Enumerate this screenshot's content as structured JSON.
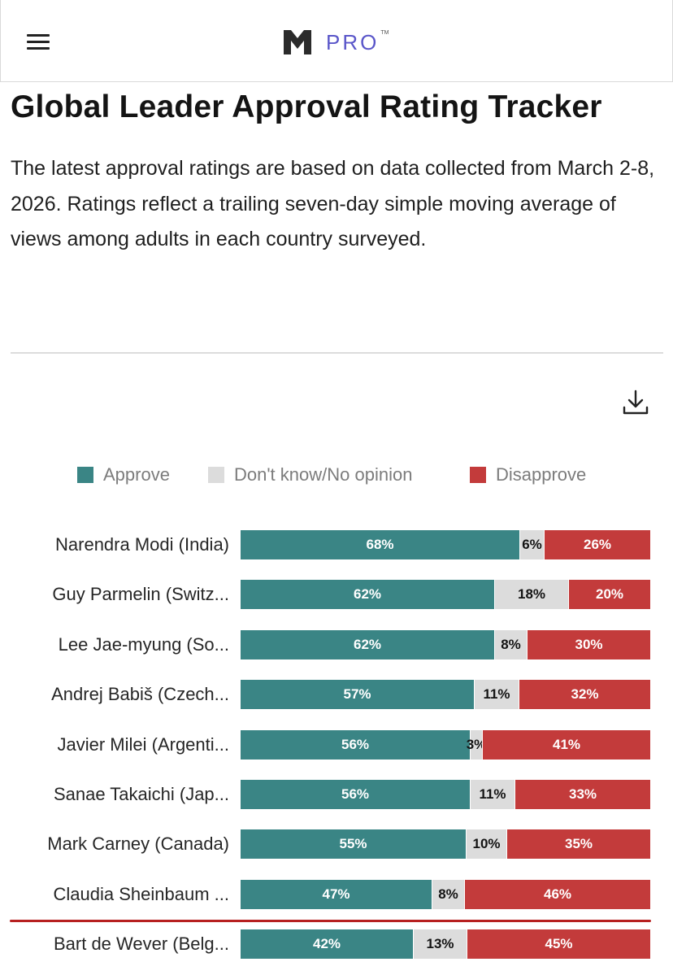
{
  "header": {
    "menu_icon": "hamburger-icon",
    "logo_text": "PRO",
    "logo_tm": "TM",
    "logo_icon": "m-logo-icon"
  },
  "page": {
    "title": "Global Leader Approval Rating Tracker",
    "description": "The latest approval ratings are based on data collected from March 2-8, 2026. Ratings reflect a trailing seven-day simple moving average of views among adults in each country surveyed.",
    "download_icon": "download-icon"
  },
  "colors": {
    "approve": "#3a8585",
    "dont_know": "#dcdcdc",
    "disapprove": "#c33b3b",
    "highlight_line": "#b72020"
  },
  "chart_data": {
    "type": "bar",
    "orientation": "horizontal-stacked-100",
    "legend": [
      "Approve",
      "Don't know/No opinion",
      "Disapprove"
    ],
    "legend_position": "top",
    "categories": [
      "Narendra Modi (India)",
      "Guy Parmelin (Switz...",
      "Lee Jae-myung (So...",
      "Andrej Babiš (Czech...",
      "Javier Milei (Argenti...",
      "Sanae Takaichi (Jap...",
      "Mark Carney (Canada)",
      "Claudia Sheinbaum ...",
      "Bart de Wever (Belg..."
    ],
    "series": [
      {
        "name": "Approve",
        "values": [
          68,
          62,
          62,
          57,
          56,
          56,
          55,
          47,
          42
        ]
      },
      {
        "name": "Don't know/No opinion",
        "values": [
          6,
          18,
          8,
          11,
          3,
          11,
          10,
          8,
          13
        ]
      },
      {
        "name": "Disapprove",
        "values": [
          26,
          20,
          30,
          32,
          41,
          33,
          35,
          46,
          45
        ]
      }
    ],
    "value_suffix": "%",
    "xlim": [
      0,
      100
    ]
  }
}
